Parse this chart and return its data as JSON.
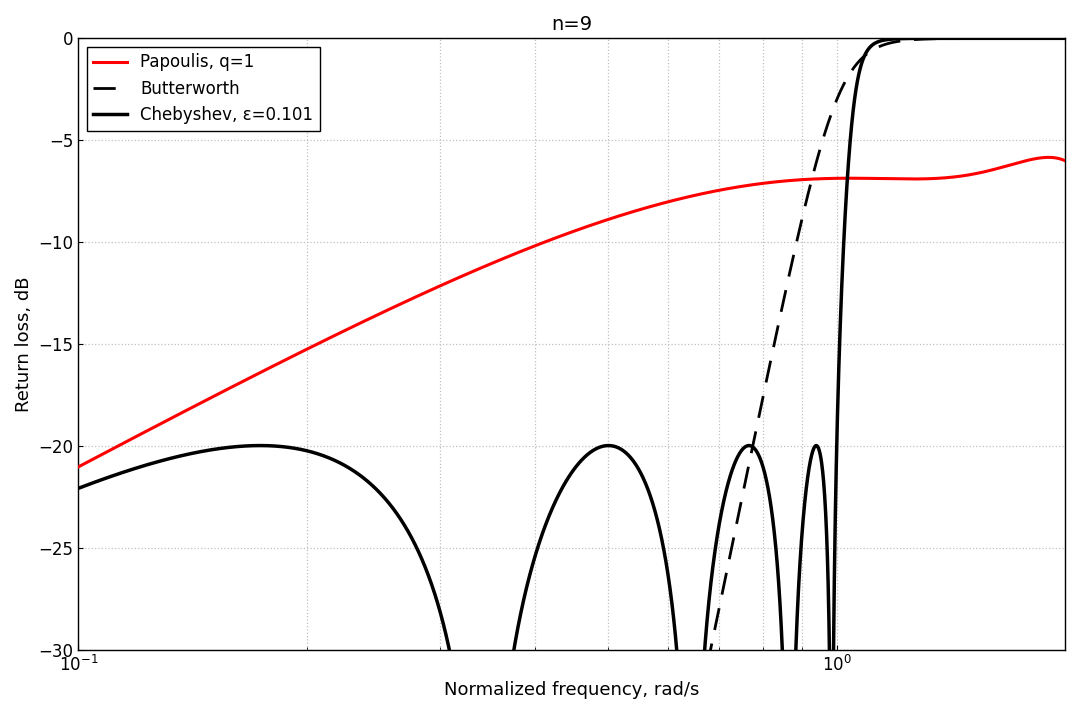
{
  "title": "n=9",
  "xlabel": "Normalized frequency, rad/s",
  "ylabel": "Return loss, dB",
  "n": 9,
  "epsilon_cheby": 0.101,
  "ylim": [
    -30,
    0
  ],
  "xlim": [
    0.1,
    2.0
  ],
  "grid_color": "#c0c0c0",
  "background_color": "#ffffff",
  "papoulis_color": "#ff0000",
  "butterworth_color": "#000000",
  "chebyshev_color": "#000000",
  "papoulis_linewidth": 2.2,
  "butterworth_linewidth": 2.0,
  "chebyshev_linewidth": 2.5,
  "legend_labels": [
    "Papoulis, q=1",
    "Butterworth",
    "Chebyshev, ε=0.101"
  ],
  "title_fontsize": 14,
  "label_fontsize": 13,
  "tick_fontsize": 12,
  "legend_fontsize": 12
}
